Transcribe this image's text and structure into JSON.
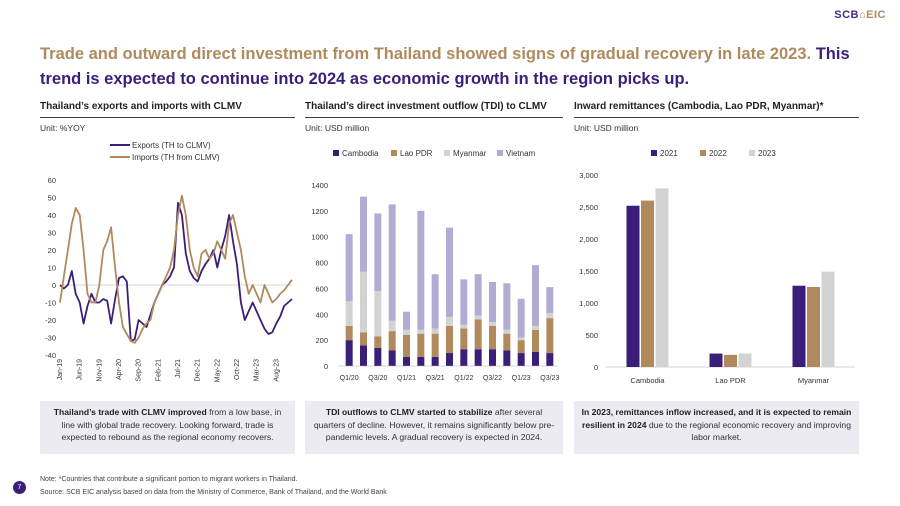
{
  "brand": {
    "scb": "SCB",
    "eic": "EIC"
  },
  "headline": {
    "part1": "Trade and outward direct investment from Thailand showed signs of gradual recovery in late 2023.",
    "part2": "This trend is expected to continue into 2024 as economic growth in the region picks up."
  },
  "panels": [
    {
      "title": "Thailand’s exports and imports with CLMV",
      "unit": "Unit: %YOY"
    },
    {
      "title": "Thailand’s direct investment outflow (TDI) to CLMV",
      "unit": "Unit: USD million"
    },
    {
      "title": "Inward remittances (Cambodia, Lao PDR, Myanmar)*",
      "unit": "Unit: USD million"
    }
  ],
  "captions": [
    {
      "bold": "Thailand’s trade with CLMV improved",
      "rest": " from a low base, in line with global trade recovery. Looking forward, trade is expected to rebound as the regional economy recovers."
    },
    {
      "bold": "TDI outflows to CLMV started to stabilize",
      "rest": " after several quarters of decline. However, it remains significantly below pre-pandemic levels. A gradual recovery is expected in 2024."
    },
    {
      "bold": "In 2023, remittances inflow increased, and it is expected to remain resilient in 2024",
      "rest": " due to the regional economic recovery and improving labor market."
    }
  ],
  "page_number": "7",
  "notes": {
    "note": "Note: *Countries that contribute a significant portion to migrant workers in Thailand.",
    "source": "Source: SCB EIC analysis based on data from the Ministry of Commerce, Bank of Thailand, and the World Bank"
  },
  "colors": {
    "purple": "#3a1f7a",
    "tan": "#b08a5d",
    "lightgray": "#d3d3d3",
    "lavender": "#b0acd3"
  },
  "chart_data": [
    {
      "type": "line",
      "x_tick_labels": [
        "Jan-19",
        "Jun-19",
        "Nov-19",
        "Apr-20",
        "Sep-20",
        "Feb-21",
        "Jul-21",
        "Dec-21",
        "May-22",
        "Oct-22",
        "Mar-23",
        "Aug-23"
      ],
      "x_tick_every": 5,
      "ylim": [
        -40,
        60
      ],
      "yticks": [
        -40,
        -30,
        -20,
        -10,
        0,
        10,
        20,
        30,
        40,
        50,
        60
      ],
      "legend_position": "top",
      "series": [
        {
          "name": "Exports (TH to CLMV)",
          "color": "#3a1f7a",
          "values": [
            0,
            -2,
            0,
            8,
            -5,
            -10,
            -22,
            -12,
            -5,
            -10,
            -10,
            -8,
            -9,
            -22,
            -8,
            4,
            5,
            2,
            -32,
            -31,
            -20,
            -22,
            -24,
            -17,
            -10,
            -5,
            0,
            2,
            5,
            10,
            47,
            40,
            18,
            8,
            4,
            2,
            8,
            12,
            15,
            20,
            10,
            20,
            28,
            40,
            25,
            12,
            -10,
            -20,
            -15,
            -10,
            -15,
            -20,
            -25,
            -28,
            -27,
            -22,
            -18,
            -12,
            -10,
            -8
          ]
        },
        {
          "name": "Imports (TH from CLMV)",
          "color": "#b08a5d",
          "values": [
            -10,
            5,
            20,
            35,
            44,
            40,
            20,
            -5,
            -10,
            -10,
            0,
            20,
            25,
            33,
            10,
            -10,
            -24,
            -28,
            -32,
            -33,
            -30,
            -25,
            -22,
            -20,
            -10,
            -5,
            0,
            5,
            10,
            20,
            40,
            51,
            40,
            20,
            10,
            5,
            18,
            20,
            15,
            18,
            25,
            20,
            15,
            35,
            40,
            30,
            20,
            5,
            -5,
            0,
            -5,
            -10,
            0,
            -5,
            -10,
            -8,
            -5,
            -3,
            0,
            3
          ]
        }
      ]
    },
    {
      "type": "bar",
      "stacked": true,
      "categories": [
        "Q1/20",
        "Q2/20",
        "Q3/20",
        "Q4/20",
        "Q1/21",
        "Q2/21",
        "Q3/21",
        "Q4/21",
        "Q1/22",
        "Q2/22",
        "Q3/22",
        "Q4/22",
        "Q1/23",
        "Q2/23",
        "Q3/23"
      ],
      "x_tick_labels": [
        "Q1/20",
        "Q3/20",
        "Q1/21",
        "Q3/21",
        "Q1/22",
        "Q3/22",
        "Q1/23",
        "Q3/23"
      ],
      "ylim": [
        0,
        1400
      ],
      "yticks": [
        0,
        200,
        400,
        600,
        800,
        1000,
        1200,
        1400
      ],
      "legend_position": "top",
      "series": [
        {
          "name": "Cambodia",
          "color": "#3a1f7a",
          "values": [
            200,
            160,
            140,
            120,
            70,
            70,
            70,
            100,
            130,
            130,
            130,
            120,
            100,
            110,
            100
          ]
        },
        {
          "name": "Lao PDR",
          "color": "#b08a5d",
          "values": [
            110,
            100,
            90,
            150,
            170,
            180,
            180,
            210,
            160,
            230,
            180,
            130,
            100,
            170,
            270
          ]
        },
        {
          "name": "Myanmar",
          "color": "#d3d3d3",
          "values": [
            190,
            470,
            350,
            80,
            40,
            30,
            40,
            70,
            30,
            30,
            30,
            30,
            20,
            30,
            40
          ]
        },
        {
          "name": "Vietnam",
          "color": "#b0acd3",
          "values": [
            520,
            580,
            600,
            900,
            140,
            920,
            420,
            690,
            350,
            320,
            310,
            360,
            300,
            470,
            200
          ]
        }
      ]
    },
    {
      "type": "bar",
      "categories": [
        "Cambodia",
        "Lao PDR",
        "Myanmar"
      ],
      "ylim": [
        0,
        3000
      ],
      "yticks": [
        0,
        500,
        1000,
        1500,
        2000,
        2500,
        3000
      ],
      "ytick_labels": [
        "0",
        "500",
        "1,000",
        "1,500",
        "2,000",
        "2,500",
        "3,000"
      ],
      "legend_position": "top",
      "series": [
        {
          "name": "2021",
          "color": "#3a1f7a",
          "values": [
            2520,
            210,
            1270
          ]
        },
        {
          "name": "2022",
          "color": "#b08a5d",
          "values": [
            2600,
            190,
            1250
          ]
        },
        {
          "name": "2023",
          "color": "#d3d3d3",
          "values": [
            2790,
            210,
            1490
          ]
        }
      ]
    }
  ]
}
